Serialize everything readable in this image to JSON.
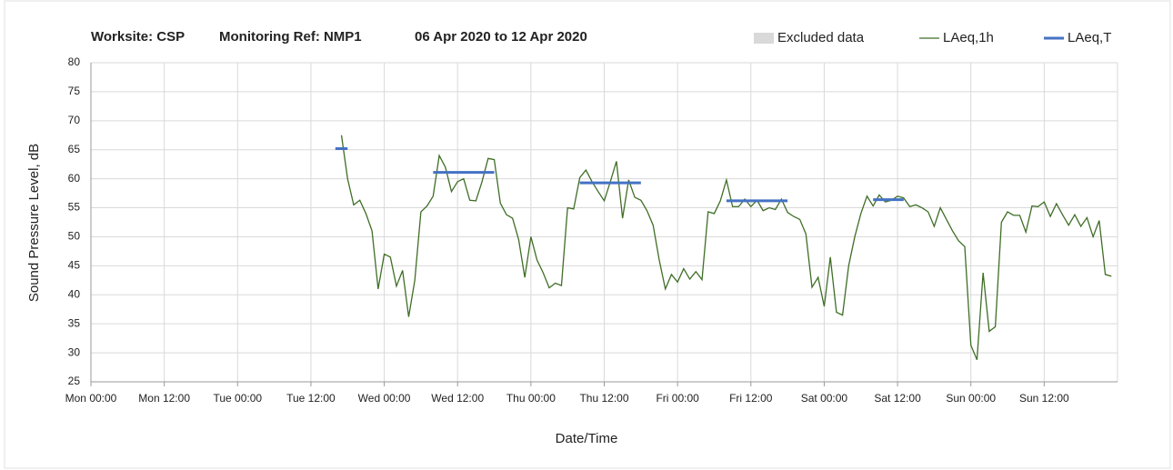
{
  "chart_data": {
    "type": "line",
    "title": [
      "Worksite: CSP",
      "Monitoring Ref: NMP1",
      "06 Apr 2020 to 12 Apr 2020"
    ],
    "xlabel": "Date/Time",
    "ylabel": "Sound Pressure Level, dB",
    "xlim": [
      0,
      168
    ],
    "xticks": [
      {
        "value": 0,
        "label": "Mon 00:00"
      },
      {
        "value": 12,
        "label": "Mon 12:00"
      },
      {
        "value": 24,
        "label": "Tue 00:00"
      },
      {
        "value": 36,
        "label": "Tue 12:00"
      },
      {
        "value": 48,
        "label": "Wed 00:00"
      },
      {
        "value": 60,
        "label": "Wed 12:00"
      },
      {
        "value": 72,
        "label": "Thu 00:00"
      },
      {
        "value": 84,
        "label": "Thu 12:00"
      },
      {
        "value": 96,
        "label": "Fri 00:00"
      },
      {
        "value": 108,
        "label": "Fri 12:00"
      },
      {
        "value": 120,
        "label": "Sat 00:00"
      },
      {
        "value": 132,
        "label": "Sat 12:00"
      },
      {
        "value": 144,
        "label": "Sun 00:00"
      },
      {
        "value": 156,
        "label": "Sun 12:00"
      }
    ],
    "ylim": [
      25,
      80
    ],
    "yticks": [
      25,
      30,
      35,
      40,
      45,
      50,
      55,
      60,
      65,
      70,
      75,
      80
    ],
    "grid": true,
    "legend": "top-right",
    "series": [
      {
        "name": "Excluded data",
        "color": "#d9d9d9",
        "x": [],
        "values": []
      },
      {
        "name": "LAeq,1h",
        "color": "#3f6e26",
        "x": [
          41,
          42,
          43,
          44,
          45,
          46,
          47,
          48,
          49,
          50,
          51,
          52,
          53,
          54,
          55,
          56,
          57,
          58,
          59,
          60,
          61,
          62,
          63,
          64,
          65,
          66,
          67,
          68,
          69,
          70,
          71,
          72,
          73,
          74,
          75,
          76,
          77,
          78,
          79,
          80,
          81,
          82,
          83,
          84,
          85,
          86,
          87,
          88,
          89,
          90,
          91,
          92,
          93,
          94,
          95,
          96,
          97,
          98,
          99,
          100,
          101,
          102,
          103,
          104,
          105,
          106,
          107,
          108,
          109,
          110,
          111,
          112,
          113,
          114,
          115,
          116,
          117,
          118,
          119,
          120,
          121,
          122,
          123,
          124,
          125,
          126,
          127,
          128,
          129,
          130,
          131,
          132,
          133,
          134,
          135,
          136,
          137,
          138,
          139,
          140,
          141,
          142,
          143,
          144,
          145,
          146,
          147,
          148,
          149,
          150,
          151,
          152,
          153,
          154,
          155,
          156,
          157,
          158,
          159,
          160,
          161,
          162,
          163,
          164,
          165,
          166,
          167
        ],
        "values": [
          67.5,
          60,
          55.5,
          56.3,
          54,
          51,
          41,
          47,
          46.5,
          41.5,
          44.2,
          36.2,
          42.5,
          54.3,
          55.3,
          57,
          64,
          62,
          57.8,
          59.5,
          60,
          56.3,
          56.2,
          59.5,
          63.5,
          63.3,
          55.8,
          53.8,
          53.2,
          49.5,
          43,
          50,
          46,
          43.8,
          41.2,
          42,
          41.6,
          55,
          54.8,
          60.2,
          61.5,
          59.5,
          57.8,
          56.2,
          59.5,
          63,
          53.2,
          59.8,
          56.8,
          56.3,
          54.5,
          52,
          46,
          41,
          43.5,
          42.2,
          44.5,
          42.7,
          44,
          42.6,
          54.3,
          54,
          56.2,
          59.8,
          55.2,
          55.2,
          56.5,
          55.2,
          56.3,
          54.5,
          55,
          54.7,
          56.5,
          54.2,
          53.5,
          53,
          50.5,
          41.3,
          43,
          38,
          46.5,
          37,
          36.5,
          45,
          50,
          54,
          57,
          55.3,
          57.2,
          56,
          56.3,
          57,
          56.7,
          55.2,
          55.5,
          55,
          54.3,
          51.8,
          55,
          53,
          51,
          49.3,
          48.3,
          31.3,
          28.8,
          43.8,
          33.7,
          34.5,
          52.5,
          54.3,
          53.7,
          53.7,
          50.8,
          55.3,
          55.2,
          56,
          53.5,
          55.7,
          53.8,
          52,
          53.8,
          51.8,
          53.3,
          50,
          52.8,
          43.5,
          43.2
        ]
      },
      {
        "name": "LAeq,T",
        "color": "#4472c4",
        "x": [
          40,
          42,
          49,
          56,
          66,
          73,
          80,
          90,
          97,
          104,
          114,
          121,
          128,
          133
        ],
        "values": [
          65.2,
          65.2,
          null,
          61.1,
          61.1,
          null,
          59.3,
          59.3,
          null,
          56.2,
          56.2,
          null,
          56.4,
          56.4
        ]
      }
    ]
  }
}
